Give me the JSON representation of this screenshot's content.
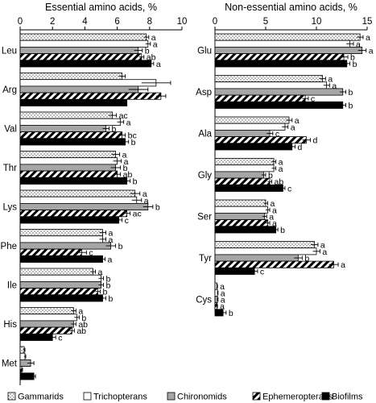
{
  "chart_data": [
    {
      "type": "bar",
      "orientation": "horizontal",
      "title": "Essential amino acids, %",
      "xlim": [
        0,
        10
      ],
      "xticks": [
        0,
        2,
        4,
        6,
        8,
        10
      ],
      "grid": false,
      "categories": [
        "Leu",
        "Arg",
        "Val",
        "Thr",
        "Lys",
        "Phe",
        "Ile",
        "His",
        "Met"
      ],
      "series": [
        {
          "name": "Gammarids",
          "values": [
            7.8,
            6.3,
            5.7,
            5.9,
            7.1,
            5.1,
            4.5,
            3.3,
            0.25
          ],
          "errors": [
            0.15,
            0.2,
            0.25,
            0.25,
            0.3,
            0.2,
            0.15,
            0.15,
            0.05
          ],
          "labels": [
            "a",
            "",
            "ac",
            "a",
            "a",
            "a",
            "a",
            "a",
            ""
          ]
        },
        {
          "name": "Trichopterans",
          "values": [
            7.9,
            8.4,
            6.2,
            6.0,
            7.2,
            5.1,
            5.0,
            3.5,
            0.3
          ],
          "errors": [
            0.15,
            0.9,
            0.2,
            0.25,
            0.3,
            0.2,
            0.15,
            0.15,
            0.05
          ],
          "labels": [
            "a",
            "",
            "a",
            "a",
            "a",
            "a",
            "b",
            "b",
            ""
          ]
        },
        {
          "name": "Chironomids",
          "values": [
            7.3,
            7.3,
            5.3,
            5.9,
            7.9,
            5.6,
            5.0,
            3.3,
            0.65
          ],
          "errors": [
            0.25,
            0.6,
            0.2,
            0.3,
            0.3,
            0.3,
            0.15,
            0.15,
            0.2
          ],
          "labels": [
            "b",
            "",
            "b",
            "b",
            "b",
            "b",
            "b",
            "ab",
            ""
          ]
        },
        {
          "name": "Ephemeropterans",
          "values": [
            7.5,
            8.7,
            6.3,
            6.0,
            6.6,
            3.8,
            4.8,
            3.2,
            0.1
          ],
          "errors": [
            0.15,
            0.3,
            0.2,
            0.2,
            0.2,
            0.3,
            0.15,
            0.15,
            0.05
          ],
          "labels": [
            "ab",
            "",
            "bc",
            "ab",
            "ac",
            "c",
            "b",
            "ab",
            ""
          ]
        },
        {
          "name": "Biofilms",
          "values": [
            8.1,
            6.6,
            6.5,
            6.6,
            6.1,
            5.1,
            5.1,
            2.0,
            0.85
          ],
          "errors": [
            0.15,
            0.0,
            0.2,
            0.2,
            0.2,
            0.15,
            0.2,
            0.2,
            0.1
          ],
          "labels": [
            "a",
            "",
            "b",
            "b",
            "c",
            "a",
            "b",
            "c",
            ""
          ]
        }
      ]
    },
    {
      "type": "bar",
      "orientation": "horizontal",
      "title": "Non-essential amino acids, %",
      "xlim": [
        0,
        15
      ],
      "xticks": [
        0,
        5,
        10,
        15
      ],
      "grid": false,
      "categories": [
        "Glu",
        "Asp",
        "Ala",
        "Gly",
        "Ser",
        "Tyr",
        "Cys"
      ],
      "series": [
        {
          "name": "Gammarids",
          "values": [
            14.3,
            10.6,
            7.3,
            5.8,
            5.0,
            9.8,
            0.2
          ],
          "errors": [
            0.3,
            0.3,
            0.3,
            0.2,
            0.2,
            0.35,
            0.05
          ],
          "labels": [
            "a",
            "a",
            "a",
            "a",
            "a",
            "a",
            "a"
          ]
        },
        {
          "name": "Trichopterans",
          "values": [
            13.3,
            11.0,
            6.9,
            5.8,
            5.2,
            10.0,
            0.25
          ],
          "errors": [
            0.35,
            0.3,
            0.3,
            0.2,
            0.2,
            0.35,
            0.05
          ],
          "labels": [
            "a",
            "a",
            "a",
            "a",
            "a",
            "a",
            "a"
          ]
        },
        {
          "name": "Chironomids",
          "values": [
            14.5,
            12.6,
            5.4,
            4.8,
            4.9,
            8.2,
            0.25
          ],
          "errors": [
            0.4,
            0.3,
            0.3,
            0.2,
            0.2,
            0.4,
            0.05
          ],
          "labels": [
            "a",
            "b",
            "c",
            "b",
            "a",
            "b",
            "a"
          ]
        },
        {
          "name": "Ephemeropterans",
          "values": [
            12.7,
            8.9,
            9.0,
            5.4,
            5.2,
            11.7,
            0.2
          ],
          "errors": [
            0.4,
            0.3,
            0.4,
            0.2,
            0.2,
            0.45,
            0.05
          ],
          "labels": [
            "b",
            "c",
            "d",
            "ab",
            "a",
            "a",
            "a"
          ]
        },
        {
          "name": "Biofilms",
          "values": [
            13.0,
            12.6,
            7.6,
            6.7,
            6.0,
            3.9,
            0.8
          ],
          "errors": [
            0.3,
            0.3,
            0.3,
            0.2,
            0.2,
            0.3,
            0.3
          ],
          "labels": [
            "b",
            "b",
            "d",
            "c",
            "b",
            "c",
            "b"
          ]
        }
      ]
    }
  ],
  "legend": {
    "placement": "bottom",
    "items": [
      {
        "name": "Gammarids",
        "pattern": "dotted"
      },
      {
        "name": "Trichopterans",
        "pattern": "white"
      },
      {
        "name": "Chironomids",
        "pattern": "gray"
      },
      {
        "name": "Ephemeropterans",
        "pattern": "hatched"
      },
      {
        "name": "Biofilms",
        "pattern": "black"
      }
    ]
  },
  "colors": {
    "gray": "#a6a6a6",
    "black": "#000000",
    "white": "#ffffff"
  }
}
